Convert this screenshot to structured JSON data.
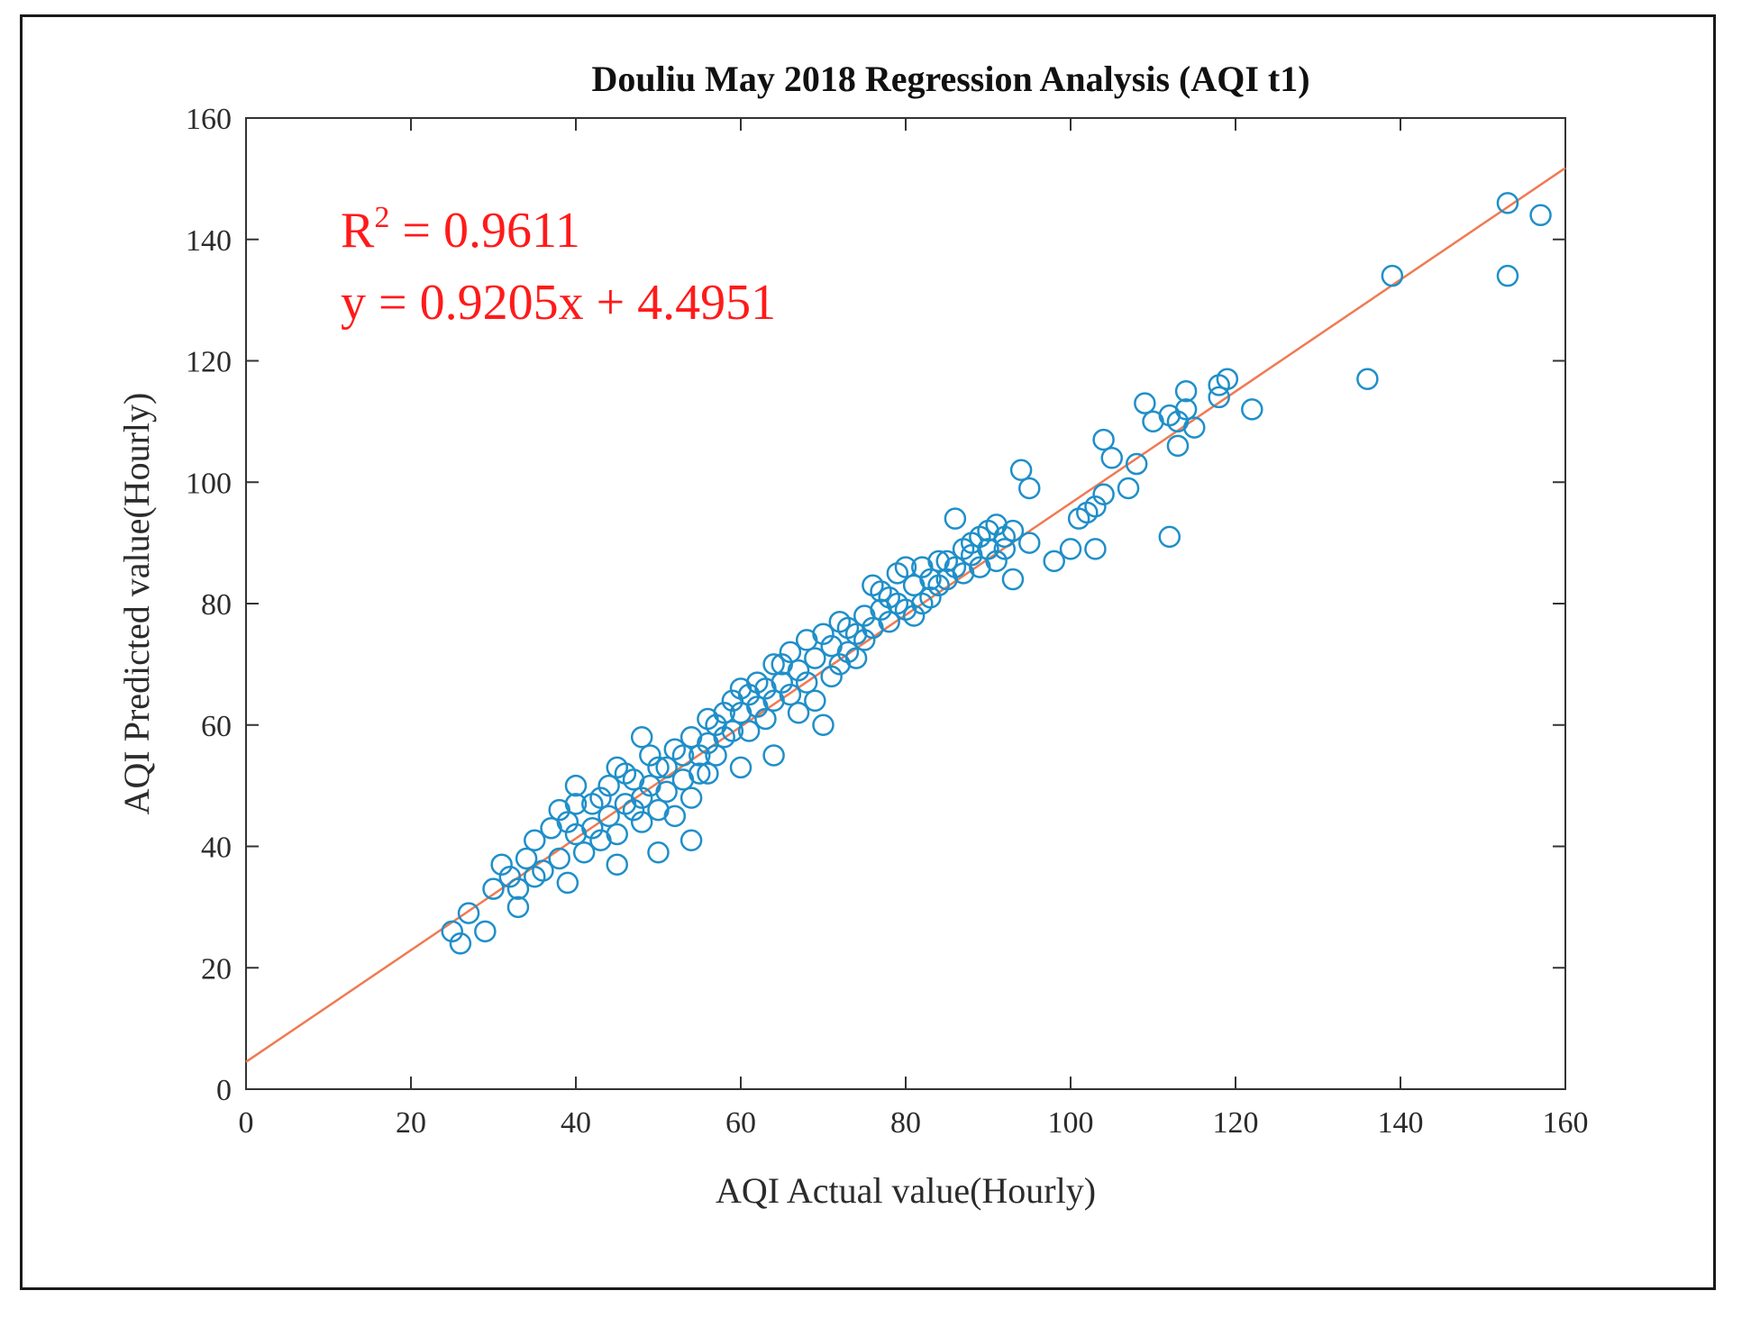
{
  "chart_data": {
    "type": "scatter",
    "title": "Douliu May 2018 Regression Analysis (AQI t1)",
    "xlabel": "AQI Actual value(Hourly)",
    "ylabel": "AQI Predicted value(Hourly)",
    "xlim": [
      0,
      160
    ],
    "ylim": [
      0,
      160
    ],
    "xticks": [
      "0",
      "20",
      "40",
      "60",
      "80",
      "100",
      "120",
      "140",
      "160"
    ],
    "yticks": [
      "0",
      "20",
      "40",
      "60",
      "80",
      "100",
      "120",
      "140",
      "160"
    ],
    "grid": false,
    "annotations": {
      "r2_prefix": "R",
      "r2_sup": "2",
      "r2_rest": " = 0.9611",
      "equation": "y = 0.9205x + 4.4951"
    },
    "fit_line": {
      "slope": 0.9205,
      "intercept": 4.4951
    },
    "colors": {
      "points": "#1f8fc9",
      "fit": "#f07a52",
      "annot": "#ff1a1a"
    },
    "series": [
      {
        "name": "points",
        "x": [
          25,
          26,
          27,
          29,
          30,
          31,
          32,
          33,
          33,
          34,
          35,
          35,
          36,
          37,
          38,
          38,
          39,
          39,
          40,
          40,
          40,
          41,
          42,
          42,
          43,
          43,
          44,
          44,
          45,
          45,
          45,
          46,
          46,
          47,
          47,
          48,
          48,
          48,
          49,
          49,
          50,
          50,
          50,
          51,
          51,
          52,
          52,
          53,
          53,
          54,
          54,
          54,
          55,
          55,
          56,
          56,
          56,
          57,
          57,
          58,
          58,
          59,
          59,
          60,
          60,
          60,
          61,
          61,
          62,
          62,
          63,
          63,
          64,
          64,
          64,
          65,
          65,
          66,
          66,
          67,
          67,
          68,
          68,
          69,
          69,
          70,
          70,
          71,
          71,
          72,
          72,
          73,
          73,
          74,
          74,
          75,
          75,
          76,
          76,
          77,
          77,
          78,
          78,
          79,
          79,
          80,
          80,
          81,
          81,
          82,
          82,
          83,
          83,
          84,
          84,
          85,
          85,
          86,
          86,
          87,
          87,
          88,
          88,
          89,
          89,
          90,
          90,
          91,
          91,
          92,
          92,
          93,
          93,
          94,
          95,
          95,
          98,
          100,
          101,
          102,
          103,
          103,
          104,
          104,
          105,
          107,
          108,
          109,
          110,
          112,
          112,
          113,
          113,
          114,
          114,
          115,
          118,
          118,
          119,
          122,
          136,
          139,
          153,
          153,
          157
        ],
        "y": [
          26,
          24,
          29,
          26,
          33,
          37,
          35,
          30,
          33,
          38,
          41,
          35,
          36,
          43,
          46,
          38,
          34,
          44,
          50,
          47,
          42,
          39,
          47,
          43,
          48,
          41,
          45,
          50,
          37,
          53,
          42,
          52,
          47,
          46,
          51,
          58,
          48,
          44,
          55,
          50,
          39,
          53,
          46,
          53,
          49,
          56,
          45,
          55,
          51,
          41,
          58,
          48,
          55,
          52,
          61,
          57,
          52,
          60,
          55,
          62,
          58,
          64,
          59,
          66,
          62,
          53,
          65,
          59,
          67,
          63,
          61,
          66,
          70,
          64,
          55,
          70,
          67,
          72,
          65,
          69,
          62,
          74,
          67,
          71,
          64,
          75,
          60,
          73,
          68,
          77,
          70,
          76,
          72,
          75,
          71,
          78,
          74,
          83,
          76,
          82,
          79,
          81,
          77,
          80,
          85,
          86,
          79,
          83,
          78,
          86,
          80,
          84,
          81,
          87,
          83,
          87,
          84,
          94,
          86,
          89,
          85,
          90,
          88,
          91,
          86,
          92,
          89,
          93,
          87,
          91,
          89,
          92,
          84,
          102,
          99,
          90,
          87,
          89,
          94,
          95,
          89,
          96,
          98,
          107,
          104,
          99,
          103,
          113,
          110,
          91,
          111,
          106,
          110,
          115,
          112,
          109,
          114,
          116,
          117,
          112,
          117,
          134,
          146,
          134,
          144
        ]
      }
    ]
  }
}
